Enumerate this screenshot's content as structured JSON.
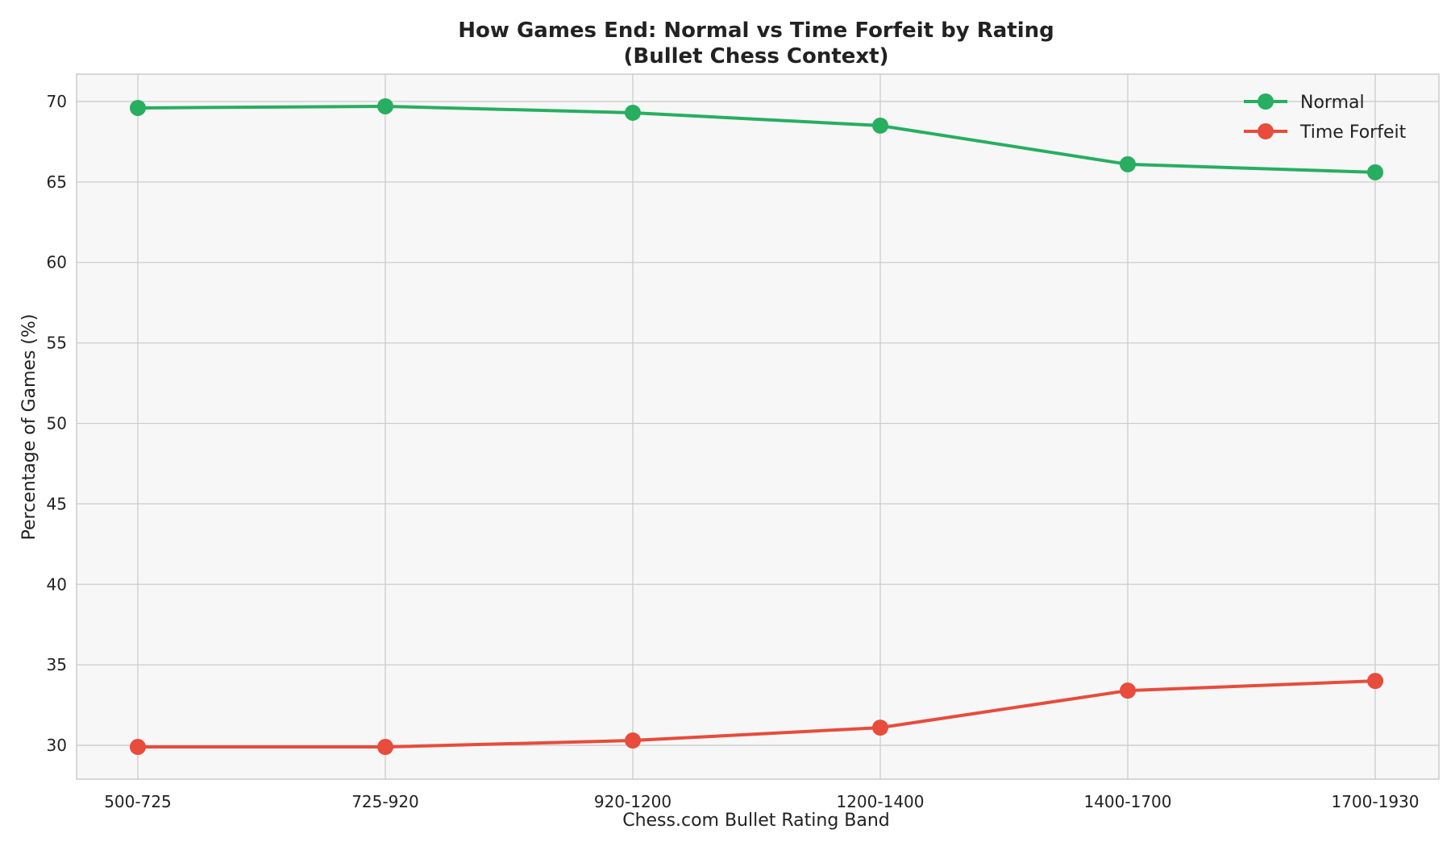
{
  "chart_data": {
    "type": "line",
    "title_line1": "How Games End: Normal vs Time Forfeit by Rating",
    "title_line2": "(Bullet Chess Context)",
    "xlabel": "Chess.com Bullet Rating Band",
    "ylabel": "Percentage of Games (%)",
    "categories": [
      "500-725",
      "725-920",
      "920-1200",
      "1200-1400",
      "1400-1700",
      "1700-1930"
    ],
    "ylim": [
      27.9,
      71.7
    ],
    "yticks": [
      30,
      35,
      40,
      45,
      50,
      55,
      60,
      65,
      70
    ],
    "grid": true,
    "legend_position": "top-right",
    "series": [
      {
        "name": "Normal",
        "color": "#27ae60",
        "values": [
          69.6,
          69.7,
          69.3,
          68.5,
          66.1,
          65.6
        ]
      },
      {
        "name": "Time Forfeit",
        "color": "#e74c3c",
        "values": [
          29.9,
          29.9,
          30.3,
          31.1,
          33.4,
          34.0
        ]
      }
    ]
  }
}
